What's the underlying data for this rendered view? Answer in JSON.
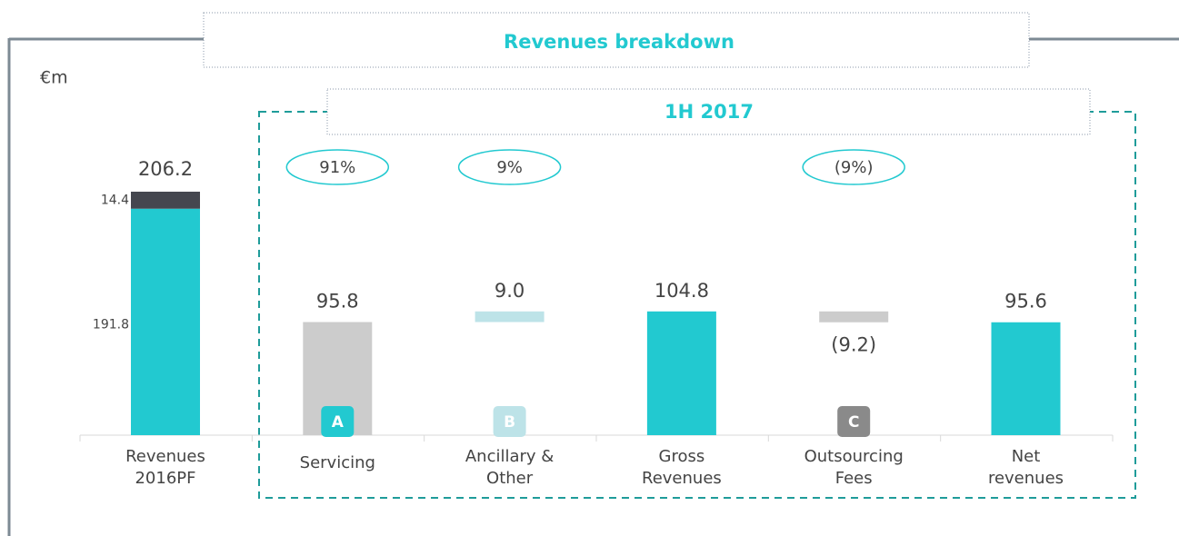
{
  "chart_data": {
    "type": "waterfall",
    "title": "Revenues breakdown",
    "subtitle": "1H 2017",
    "unit_label": "€m",
    "base": {
      "category": [
        "Revenues",
        "2016PF"
      ],
      "segments": [
        {
          "value": 191.8,
          "color": "#22c9d0"
        },
        {
          "value": 14.4,
          "color": "#45474f"
        }
      ],
      "total": 206.2
    },
    "steps": [
      {
        "category": [
          "Servicing"
        ],
        "kind": "step",
        "value": 95.8,
        "color": "#cccccc",
        "badge": "A",
        "badge_color": "#22c9d0",
        "share": 91,
        "share_label": "91%"
      },
      {
        "category": [
          "Ancillary &",
          "Other"
        ],
        "kind": "step",
        "value": 9.0,
        "value_label": "9.0",
        "color": "#bde3e8",
        "badge": "B",
        "badge_color": "#bde3e8",
        "share": 9,
        "share_label": "9%"
      },
      {
        "category": [
          "Gross",
          "Revenues"
        ],
        "kind": "total",
        "value": 104.8,
        "color": "#22c9d0"
      },
      {
        "category": [
          "Outsourcing",
          "Fees"
        ],
        "kind": "step",
        "value": -9.2,
        "value_label": "(9.2)",
        "color": "#cccccc",
        "badge": "C",
        "badge_color": "#8a8a8a",
        "share": -9,
        "share_label": "(9%)"
      },
      {
        "category": [
          "Net",
          "revenues"
        ],
        "kind": "total",
        "value": 95.6,
        "color": "#22c9d0"
      }
    ]
  }
}
